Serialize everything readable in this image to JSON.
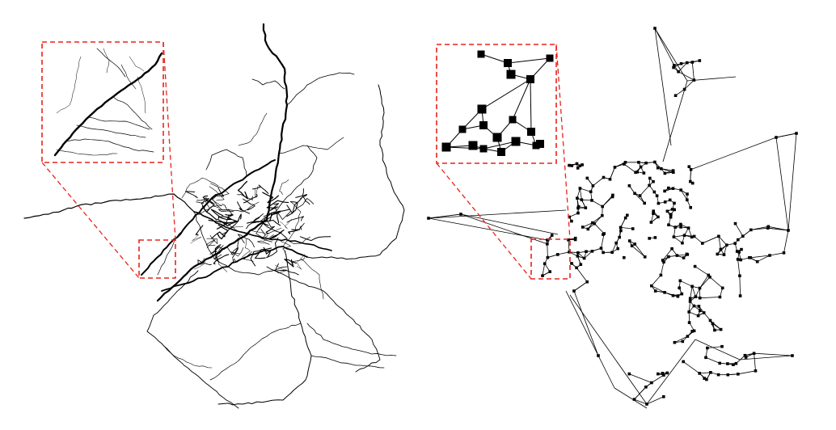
{
  "figure": {
    "panels": [
      {
        "id": "road-network",
        "kind": "road map rendering"
      },
      {
        "id": "graph-abstraction",
        "kind": "node-link graph"
      }
    ],
    "colors": {
      "background": "#ffffff",
      "roads": "#000000",
      "edges": "#000000",
      "nodes": "#000000",
      "zoom_indicator": "#e8231c"
    },
    "zoom_indicator_style": "dashed",
    "random_seed": 7
  }
}
